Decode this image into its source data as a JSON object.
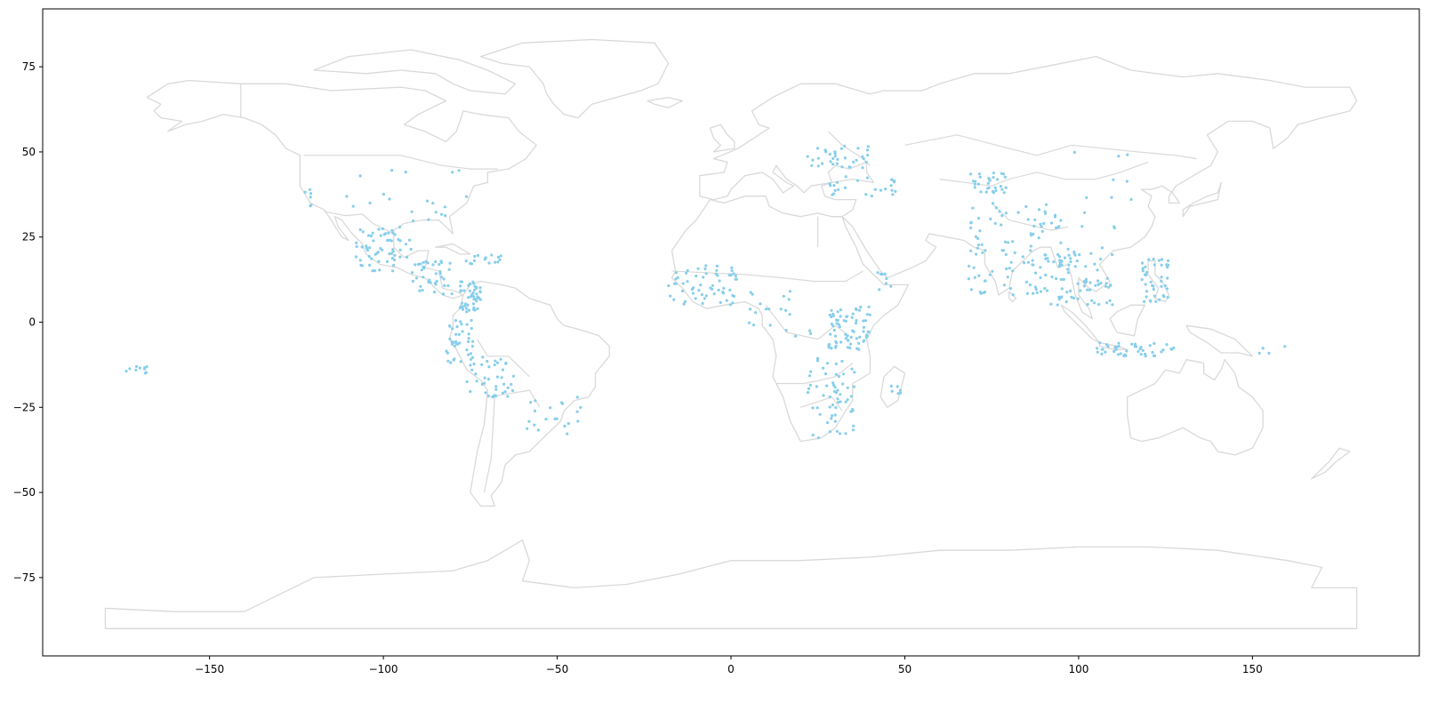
{
  "chart_data": {
    "type": "scatter",
    "title": "",
    "xlabel": "",
    "ylabel": "",
    "xlim": [
      -198,
      198
    ],
    "ylim": [
      -98,
      92
    ],
    "xticks": [
      -150,
      -100,
      -50,
      0,
      50,
      100,
      150
    ],
    "yticks": [
      -75,
      -50,
      -25,
      0,
      25,
      50,
      75
    ],
    "xtick_labels": [
      "−150",
      "−100",
      "−50",
      "0",
      "50",
      "100",
      "150"
    ],
    "ytick_labels": [
      "−75",
      "−50",
      "−25",
      "0",
      "25",
      "50",
      "75"
    ],
    "grid": false,
    "basemap": "world country outlines (light gray, unfilled)",
    "colors": {
      "points": "#87ceeb",
      "outline": "#d9d9d9",
      "axes": "#000000"
    },
    "series": [
      {
        "marker": "dot",
        "clusters": [
          {
            "region": "US Pacific coast",
            "lon": [
              -123,
              -120
            ],
            "lat": [
              32,
              39
            ],
            "n": 6
          },
          {
            "region": "US interior",
            "lon": [
              -115,
              -75
            ],
            "lat": [
              28,
              47
            ],
            "n": 20
          },
          {
            "region": "Mexico",
            "lon": [
              -108,
              -92
            ],
            "lat": [
              15,
              28
            ],
            "n": 60
          },
          {
            "region": "Central America",
            "lon": [
              -92,
              -80
            ],
            "lat": [
              8,
              18
            ],
            "n": 40
          },
          {
            "region": "Caribbean",
            "lon": [
              -77,
              -64
            ],
            "lat": [
              17,
              20
            ],
            "n": 15
          },
          {
            "region": "Colombia",
            "lon": [
              -78,
              -72
            ],
            "lat": [
              3,
              12
            ],
            "n": 50
          },
          {
            "region": "Ecuador and Peru",
            "lon": [
              -82,
              -74
            ],
            "lat": [
              -12,
              1
            ],
            "n": 40
          },
          {
            "region": "Peru and Bolivia",
            "lon": [
              -76,
              -62
            ],
            "lat": [
              -22,
              -10
            ],
            "n": 40
          },
          {
            "region": "Paraguay and southern Brazil",
            "lon": [
              -62,
              -42
            ],
            "lat": [
              -33,
              -22
            ],
            "n": 20
          },
          {
            "region": "Polynesia",
            "lon": [
              -174,
              -168
            ],
            "lat": [
              -15,
              -13
            ],
            "n": 10
          },
          {
            "region": "West Africa",
            "lon": [
              -18,
              2
            ],
            "lat": [
              5,
              17
            ],
            "n": 60
          },
          {
            "region": "Central Africa",
            "lon": [
              5,
              25
            ],
            "lat": [
              -5,
              10
            ],
            "n": 20
          },
          {
            "region": "East Africa great lakes",
            "lon": [
              28,
              40
            ],
            "lat": [
              -8,
              5
            ],
            "n": 70
          },
          {
            "region": "Southern Africa",
            "lon": [
              22,
              36
            ],
            "lat": [
              -34,
              -10
            ],
            "n": 60
          },
          {
            "region": "Madagascar",
            "lon": [
              46,
              49
            ],
            "lat": [
              -23,
              -18
            ],
            "n": 6
          },
          {
            "region": "Horn of Africa",
            "lon": [
              42,
              48
            ],
            "lat": [
              9,
              15
            ],
            "n": 8
          },
          {
            "region": "Eastern Europe",
            "lon": [
              22,
              40
            ],
            "lat": [
              45,
              52
            ],
            "n": 35
          },
          {
            "region": "Turkey and Caucasus",
            "lon": [
              28,
              48
            ],
            "lat": [
              37,
              43
            ],
            "n": 25
          },
          {
            "region": "Central Asia",
            "lon": [
              68,
              80
            ],
            "lat": [
              38,
              44
            ],
            "n": 30
          },
          {
            "region": "India",
            "lon": [
              68,
              95
            ],
            "lat": [
              8,
              35
            ],
            "n": 110
          },
          {
            "region": "Southeast Asia",
            "lon": [
              92,
              110
            ],
            "lat": [
              5,
              22
            ],
            "n": 70
          },
          {
            "region": "China",
            "lon": [
              95,
              118
            ],
            "lat": [
              25,
              50
            ],
            "n": 12
          },
          {
            "region": "Philippines",
            "lon": [
              118,
              126
            ],
            "lat": [
              6,
              19
            ],
            "n": 40
          },
          {
            "region": "Indonesia",
            "lon": [
              105,
              128
            ],
            "lat": [
              -10,
              -6
            ],
            "n": 45
          },
          {
            "region": "Melanesia",
            "lon": [
              150,
              160
            ],
            "lat": [
              -10,
              -7
            ],
            "n": 4
          }
        ]
      }
    ]
  }
}
